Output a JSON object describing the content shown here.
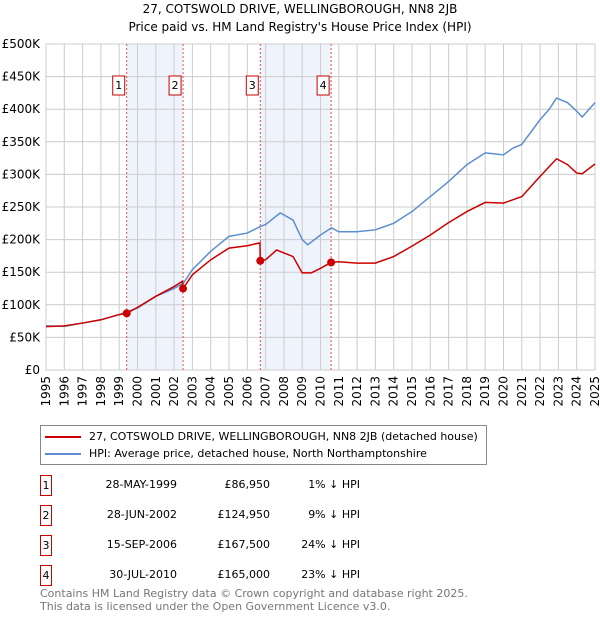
{
  "chart_data": {
    "type": "line",
    "title": "27, COTSWOLD DRIVE, WELLINGBOROUGH, NN8 2JB",
    "subtitle": "Price paid vs. HM Land Registry's House Price Index (HPI)",
    "xlim": [
      1995,
      2025
    ],
    "ylim": [
      0,
      500000
    ],
    "y_ticks": [
      {
        "v": 0,
        "l": "£0"
      },
      {
        "v": 50000,
        "l": "£50K"
      },
      {
        "v": 100000,
        "l": "£100K"
      },
      {
        "v": 150000,
        "l": "£150K"
      },
      {
        "v": 200000,
        "l": "£200K"
      },
      {
        "v": 250000,
        "l": "£250K"
      },
      {
        "v": 300000,
        "l": "£300K"
      },
      {
        "v": 350000,
        "l": "£350K"
      },
      {
        "v": 400000,
        "l": "£400K"
      },
      {
        "v": 450000,
        "l": "£450K"
      },
      {
        "v": 500000,
        "l": "£500K"
      }
    ],
    "x_ticks": [
      "1995",
      "1996",
      "1997",
      "1998",
      "1999",
      "2000",
      "2001",
      "2002",
      "2003",
      "2004",
      "2005",
      "2006",
      "2007",
      "2008",
      "2009",
      "2010",
      "2011",
      "2012",
      "2013",
      "2014",
      "2015",
      "2016",
      "2017",
      "2018",
      "2019",
      "2020",
      "2021",
      "2022",
      "2023",
      "2024",
      "2025"
    ],
    "shaded_ranges": [
      [
        1999.41,
        2002.49
      ],
      [
        2006.71,
        2010.58
      ]
    ],
    "series": [
      {
        "name": "27, COTSWOLD DRIVE, WELLINGBOROUGH, NN8 2JB (detached house)",
        "color": "#cc0000",
        "x": [
          1995,
          1996,
          1997,
          1998,
          1999,
          1999.41,
          2000,
          2001,
          2002,
          2002.45,
          2002.49,
          2003,
          2004,
          2005,
          2006,
          2006.69,
          2006.71,
          2007,
          2007.6,
          2008.5,
          2009,
          2009.5,
          2010,
          2010.58,
          2011,
          2012,
          2013,
          2014,
          2015,
          2016,
          2017,
          2018,
          2019,
          2020,
          2021,
          2022,
          2022.9,
          2023.5,
          2024,
          2024.3,
          2025
        ],
        "y": [
          66600,
          67600,
          72000,
          77000,
          85000,
          86950,
          96000,
          113000,
          128000,
          136000,
          124950,
          146000,
          169000,
          187000,
          190600,
          195000,
          167500,
          169000,
          184000,
          174000,
          149000,
          149000,
          156000,
          165000,
          166000,
          164000,
          164000,
          174000,
          190000,
          207000,
          226000,
          243000,
          257000,
          256000,
          266000,
          297000,
          324000,
          315000,
          302000,
          301000,
          316000
        ]
      },
      {
        "name": "HPI: Average price, detached house, North Northamptonshire",
        "color": "#5b8fd0",
        "x": [
          1995,
          1996,
          1997,
          1998,
          1999,
          2000,
          2001,
          2002,
          2002.5,
          2003,
          2004,
          2005,
          2006,
          2006.7,
          2007,
          2007.8,
          2008.5,
          2009,
          2009.3,
          2010,
          2010.6,
          2011,
          2012,
          2013,
          2014,
          2015,
          2016,
          2017,
          2018,
          2019,
          2020,
          2020.5,
          2021,
          2022,
          2022.5,
          2022.9,
          2023.5,
          2024,
          2024.3,
          2025
        ],
        "y": [
          67600,
          67000,
          72000,
          77000,
          85000,
          95000,
          113000,
          125000,
          133000,
          154000,
          182000,
          205000,
          210000,
          220000,
          223000,
          241000,
          230000,
          200000,
          192000,
          207000,
          218000,
          212000,
          212000,
          215000,
          225000,
          243000,
          266000,
          289000,
          315000,
          333000,
          330000,
          340000,
          346000,
          384000,
          400000,
          417000,
          410000,
          397000,
          388000,
          410000
        ]
      }
    ],
    "sales": [
      {
        "n": "1",
        "date": "28-MAY-1999",
        "x": 1999.41,
        "price": "£86,950",
        "value": 86950,
        "hpi": "1% ↓ HPI"
      },
      {
        "n": "2",
        "date": "28-JUN-2002",
        "x": 2002.49,
        "price": "£124,950",
        "value": 124950,
        "hpi": "9% ↓ HPI"
      },
      {
        "n": "3",
        "date": "15-SEP-2006",
        "x": 2006.71,
        "price": "£167,500",
        "value": 167500,
        "hpi": "24% ↓ HPI"
      },
      {
        "n": "4",
        "date": "30-JUL-2010",
        "x": 2010.58,
        "price": "£165,000",
        "value": 165000,
        "hpi": "23% ↓ HPI"
      }
    ]
  },
  "legend": {
    "red": "27, COTSWOLD DRIVE, WELLINGBOROUGH, NN8 2JB (detached house)",
    "blue": "HPI: Average price, detached house, North Northamptonshire"
  },
  "footer": {
    "line1": "Contains HM Land Registry data © Crown copyright and database right 2025.",
    "line2": "This data is licensed under the Open Government Licence v3.0."
  }
}
